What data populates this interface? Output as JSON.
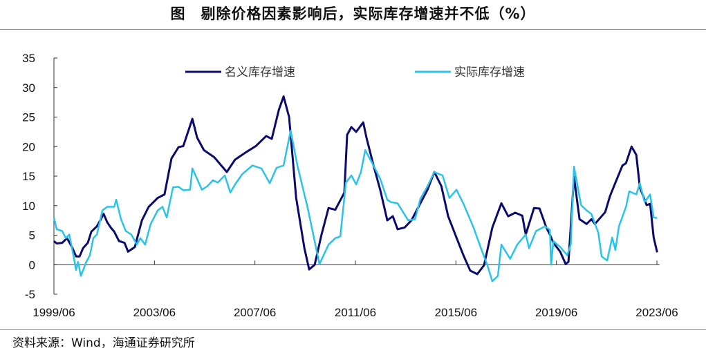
{
  "title": "图　剔除价格因素影响后，实际库存增速并不低（%）",
  "source": "资料来源：Wind，海通证券研究所",
  "colors": {
    "nominal": "#0a0a6e",
    "real": "#29c3ea"
  },
  "chart_data": {
    "type": "line",
    "title": "图　剔除价格因素影响后，实际库存增速并不低（%）",
    "xlabel": "",
    "ylabel": "%",
    "ylim": [
      -5,
      35
    ],
    "yticks": [
      "-5",
      "0",
      "5",
      "10",
      "15",
      "20",
      "25",
      "30",
      "35"
    ],
    "xlim": [
      1999.5,
      2023.5
    ],
    "xticks": [
      {
        "v": 1999.5,
        "label": "1999/06"
      },
      {
        "v": 2003.5,
        "label": "2003/06"
      },
      {
        "v": 2007.5,
        "label": "2007/06"
      },
      {
        "v": 2011.5,
        "label": "2011/06"
      },
      {
        "v": 2015.5,
        "label": "2015/06"
      },
      {
        "v": 2019.5,
        "label": "2019/06"
      },
      {
        "v": 2023.5,
        "label": "2023/06"
      }
    ],
    "legend_position": "top",
    "grid": false,
    "series": [
      {
        "name": "名义库存增速",
        "color": "#0a0a6e",
        "points": [
          [
            1999.5,
            4
          ],
          [
            1999.61,
            3.6
          ],
          [
            1999.83,
            3.7
          ],
          [
            2000.02,
            4.5
          ],
          [
            2000.24,
            2.8
          ],
          [
            2000.38,
            1.4
          ],
          [
            2000.52,
            1.4
          ],
          [
            2000.66,
            2.8
          ],
          [
            2000.85,
            3.7
          ],
          [
            2000.99,
            5.6
          ],
          [
            2001.21,
            6.5
          ],
          [
            2001.34,
            7.5
          ],
          [
            2001.48,
            8.6
          ],
          [
            2001.62,
            7.2
          ],
          [
            2001.76,
            6.3
          ],
          [
            2001.9,
            5.6
          ],
          [
            2002.09,
            4
          ],
          [
            2002.31,
            3.7
          ],
          [
            2002.45,
            2.2
          ],
          [
            2002.72,
            3.0
          ],
          [
            2003.0,
            7.5
          ],
          [
            2003.27,
            9.8
          ],
          [
            2003.63,
            11.3
          ],
          [
            2003.9,
            11.9
          ],
          [
            2004.18,
            18
          ],
          [
            2004.46,
            19.9
          ],
          [
            2004.65,
            20.1
          ],
          [
            2005.01,
            24.7
          ],
          [
            2005.2,
            21.5
          ],
          [
            2005.47,
            19.4
          ],
          [
            2005.88,
            18.2
          ],
          [
            2006.38,
            15.7
          ],
          [
            2006.71,
            17.8
          ],
          [
            2007.13,
            19
          ],
          [
            2007.54,
            20.1
          ],
          [
            2007.95,
            21.8
          ],
          [
            2008.17,
            21.3
          ],
          [
            2008.45,
            26.2
          ],
          [
            2008.64,
            28.5
          ],
          [
            2008.86,
            25
          ],
          [
            2009.14,
            11.3
          ],
          [
            2009.47,
            2.8
          ],
          [
            2009.66,
            -0.8
          ],
          [
            2009.88,
            0
          ],
          [
            2010.15,
            5.1
          ],
          [
            2010.43,
            9.6
          ],
          [
            2010.7,
            9.3
          ],
          [
            2011.06,
            12.2
          ],
          [
            2011.17,
            22
          ],
          [
            2011.34,
            23.3
          ],
          [
            2011.53,
            22.5
          ],
          [
            2011.81,
            24.1
          ],
          [
            2011.94,
            21.5
          ],
          [
            2012.22,
            16.8
          ],
          [
            2012.49,
            12.6
          ],
          [
            2012.77,
            7.5
          ],
          [
            2012.99,
            8.2
          ],
          [
            2013.18,
            6
          ],
          [
            2013.46,
            6.3
          ],
          [
            2013.73,
            7.5
          ],
          [
            2014.01,
            9.8
          ],
          [
            2014.37,
            12.7
          ],
          [
            2014.64,
            15.7
          ],
          [
            2014.92,
            13.3
          ],
          [
            2015.19,
            8.2
          ],
          [
            2015.52,
            4.6
          ],
          [
            2015.8,
            1.6
          ],
          [
            2016.07,
            -1
          ],
          [
            2016.35,
            -1.6
          ],
          [
            2016.62,
            -0.1
          ],
          [
            2016.95,
            6.3
          ],
          [
            2017.31,
            10.4
          ],
          [
            2017.58,
            8.2
          ],
          [
            2017.86,
            8.8
          ],
          [
            2018.14,
            8.3
          ],
          [
            2018.28,
            5.1
          ],
          [
            2018.61,
            9.6
          ],
          [
            2018.83,
            9.5
          ],
          [
            2019.1,
            6.3
          ],
          [
            2019.24,
            5.1
          ],
          [
            2019.38,
            3.7
          ],
          [
            2019.65,
            2.2
          ],
          [
            2019.87,
            0.1
          ],
          [
            2019.98,
            0.5
          ],
          [
            2020.2,
            14.9
          ],
          [
            2020.42,
            7.7
          ],
          [
            2020.7,
            6.9
          ],
          [
            2020.89,
            7.7
          ],
          [
            2021.03,
            6.9
          ],
          [
            2021.44,
            8.9
          ],
          [
            2021.63,
            11.6
          ],
          [
            2021.85,
            13.9
          ],
          [
            2022.13,
            16.8
          ],
          [
            2022.27,
            17.2
          ],
          [
            2022.49,
            20
          ],
          [
            2022.68,
            18.6
          ],
          [
            2022.82,
            13.1
          ],
          [
            2023.09,
            10.1
          ],
          [
            2023.23,
            10.3
          ],
          [
            2023.37,
            4.6
          ],
          [
            2023.51,
            2.1
          ]
        ]
      },
      {
        "name": "实际库存增速",
        "color": "#29c3ea",
        "points": [
          [
            1999.5,
            8
          ],
          [
            1999.61,
            6
          ],
          [
            1999.83,
            5.7
          ],
          [
            1999.97,
            4.5
          ],
          [
            2000.11,
            5.1
          ],
          [
            2000.3,
            1
          ],
          [
            2000.38,
            -0.9
          ],
          [
            2000.46,
            0.5
          ],
          [
            2000.57,
            -1.9
          ],
          [
            2000.79,
            0.5
          ],
          [
            2000.93,
            1.6
          ],
          [
            2001.07,
            4.5
          ],
          [
            2001.21,
            5.1
          ],
          [
            2001.43,
            9.2
          ],
          [
            2001.62,
            9.8
          ],
          [
            2001.9,
            9.8
          ],
          [
            2001.98,
            11
          ],
          [
            2002.17,
            7.7
          ],
          [
            2002.36,
            5.7
          ],
          [
            2002.58,
            5.1
          ],
          [
            2002.8,
            3.4
          ],
          [
            2002.94,
            4.5
          ],
          [
            2003.13,
            3.4
          ],
          [
            2003.35,
            6.9
          ],
          [
            2003.63,
            9.2
          ],
          [
            2003.82,
            9.8
          ],
          [
            2003.99,
            8
          ],
          [
            2004.24,
            13.1
          ],
          [
            2004.46,
            13.2
          ],
          [
            2004.65,
            12.6
          ],
          [
            2004.92,
            12.7
          ],
          [
            2005.01,
            16.3
          ],
          [
            2005.2,
            14.5
          ],
          [
            2005.39,
            12.7
          ],
          [
            2005.61,
            13.3
          ],
          [
            2005.83,
            14.3
          ],
          [
            2006.02,
            13.9
          ],
          [
            2006.3,
            15.1
          ],
          [
            2006.52,
            12.2
          ],
          [
            2006.71,
            13.6
          ],
          [
            2006.99,
            15.3
          ],
          [
            2007.4,
            16.8
          ],
          [
            2007.76,
            16.3
          ],
          [
            2008.09,
            13.8
          ],
          [
            2008.36,
            16.4
          ],
          [
            2008.64,
            16.8
          ],
          [
            2008.92,
            22.7
          ],
          [
            2009.19,
            16.8
          ],
          [
            2009.6,
            9.6
          ],
          [
            2010.07,
            0.1
          ],
          [
            2010.43,
            3.4
          ],
          [
            2010.7,
            4.5
          ],
          [
            2010.9,
            4.8
          ],
          [
            2011.12,
            13.9
          ],
          [
            2011.34,
            15.1
          ],
          [
            2011.53,
            13.6
          ],
          [
            2011.72,
            15.7
          ],
          [
            2011.89,
            19.4
          ],
          [
            2012.22,
            16.8
          ],
          [
            2012.49,
            14.5
          ],
          [
            2012.77,
            11
          ],
          [
            2012.91,
            10.6
          ],
          [
            2013.18,
            10.4
          ],
          [
            2013.6,
            7.5
          ],
          [
            2013.87,
            7.7
          ],
          [
            2014.09,
            11.2
          ],
          [
            2014.37,
            13.3
          ],
          [
            2014.64,
            15.7
          ],
          [
            2014.97,
            15.1
          ],
          [
            2015.24,
            11.3
          ],
          [
            2015.52,
            12.7
          ],
          [
            2015.79,
            10.4
          ],
          [
            2016.2,
            6.3
          ],
          [
            2016.48,
            3
          ],
          [
            2016.75,
            -0.1
          ],
          [
            2016.95,
            -2.8
          ],
          [
            2017.17,
            -1.9
          ],
          [
            2017.31,
            3.4
          ],
          [
            2017.66,
            1
          ],
          [
            2017.94,
            3.4
          ],
          [
            2018.28,
            5.1
          ],
          [
            2018.41,
            2.8
          ],
          [
            2018.69,
            5.7
          ],
          [
            2019.05,
            6.5
          ],
          [
            2019.24,
            5.9
          ],
          [
            2019.29,
            0
          ],
          [
            2019.38,
            4
          ],
          [
            2019.65,
            3
          ],
          [
            2019.93,
            1.6
          ],
          [
            2020.07,
            3.4
          ],
          [
            2020.2,
            16.6
          ],
          [
            2020.48,
            10.1
          ],
          [
            2020.7,
            9.2
          ],
          [
            2020.89,
            8.6
          ],
          [
            2021.17,
            5.4
          ],
          [
            2021.3,
            1.4
          ],
          [
            2021.52,
            0.7
          ],
          [
            2021.72,
            4.6
          ],
          [
            2021.85,
            2.5
          ],
          [
            2021.99,
            6.5
          ],
          [
            2022.27,
            9.8
          ],
          [
            2022.4,
            12.4
          ],
          [
            2022.68,
            11.9
          ],
          [
            2022.82,
            13.8
          ],
          [
            2023.01,
            10.6
          ],
          [
            2023.23,
            11.9
          ],
          [
            2023.37,
            8
          ],
          [
            2023.51,
            7.9
          ]
        ]
      }
    ]
  }
}
